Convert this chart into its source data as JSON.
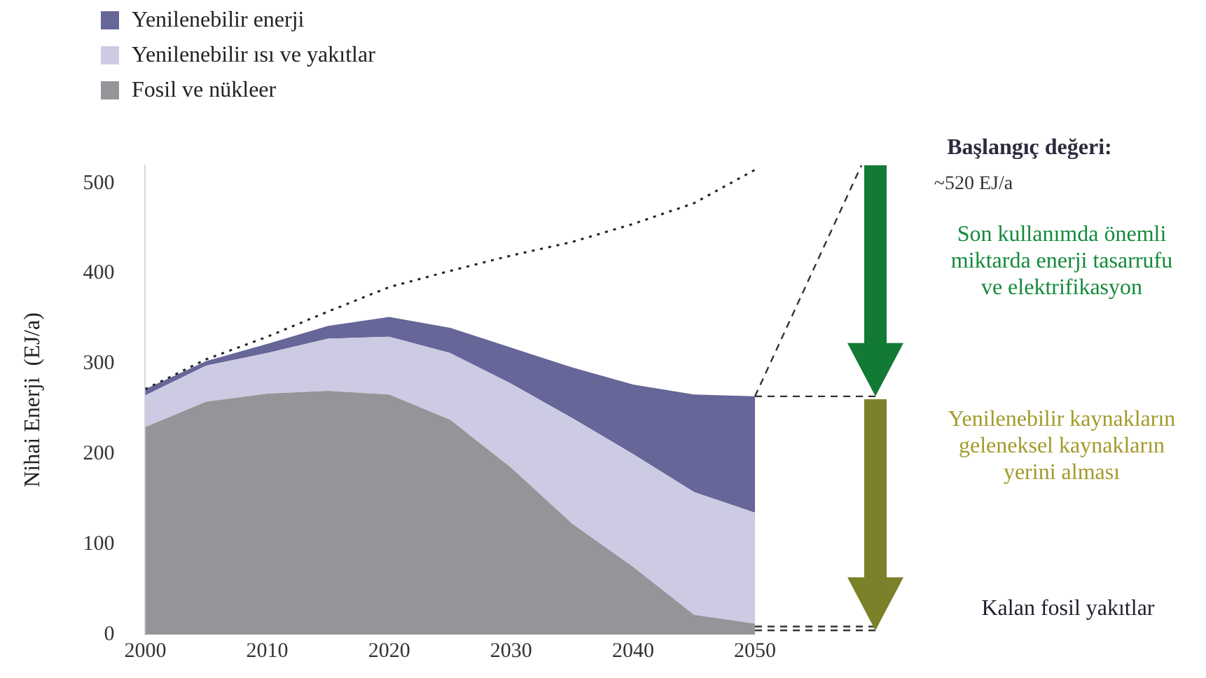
{
  "chart_data": {
    "type": "area",
    "stacked": true,
    "ylabel": "Nihai Enerji  (EJ/a)",
    "x": [
      2000,
      2005,
      2010,
      2015,
      2020,
      2025,
      2030,
      2035,
      2040,
      2045,
      2050
    ],
    "xlim": [
      2000,
      2050
    ],
    "xticks": [
      2000,
      2010,
      2020,
      2030,
      2040,
      2050
    ],
    "ylim": [
      0,
      520
    ],
    "yticks": [
      0,
      100,
      200,
      300,
      400,
      500
    ],
    "grid": false,
    "legend": "top left",
    "marker": "none",
    "series": [
      {
        "name": "Fosil ve nükleer",
        "color": "#949598",
        "values": [
          230,
          258,
          267,
          270,
          266,
          238,
          185,
          123,
          75,
          22,
          12
        ]
      },
      {
        "name": "Yenilenebilir ısı ve yakıtlar",
        "color": "#cdcbe3",
        "values": [
          35,
          40,
          45,
          58,
          64,
          74,
          93,
          117,
          125,
          136,
          123
        ]
      },
      {
        "name": "Yenilenebilir enerji",
        "color": "#676699",
        "values": [
          7,
          5,
          10,
          14,
          22,
          28,
          40,
          56,
          77,
          108,
          129
        ]
      },
      {
        "type": "line",
        "color": "#222222",
        "line_style": "dotted",
        "values": [
          272,
          305,
          330,
          358,
          385,
          403,
          420,
          435,
          455,
          478,
          515
        ]
      }
    ],
    "annotations": [
      "Başlangıç değeri:",
      "~520 EJ/a",
      "Son kullanımda önemli miktarda enerji tasarrufu ve elektrifikasyon",
      "Yenilenebilir kaynakların geleneksel kaynakların yerini alması",
      "Kalan fosil yakıtlar"
    ]
  }
}
